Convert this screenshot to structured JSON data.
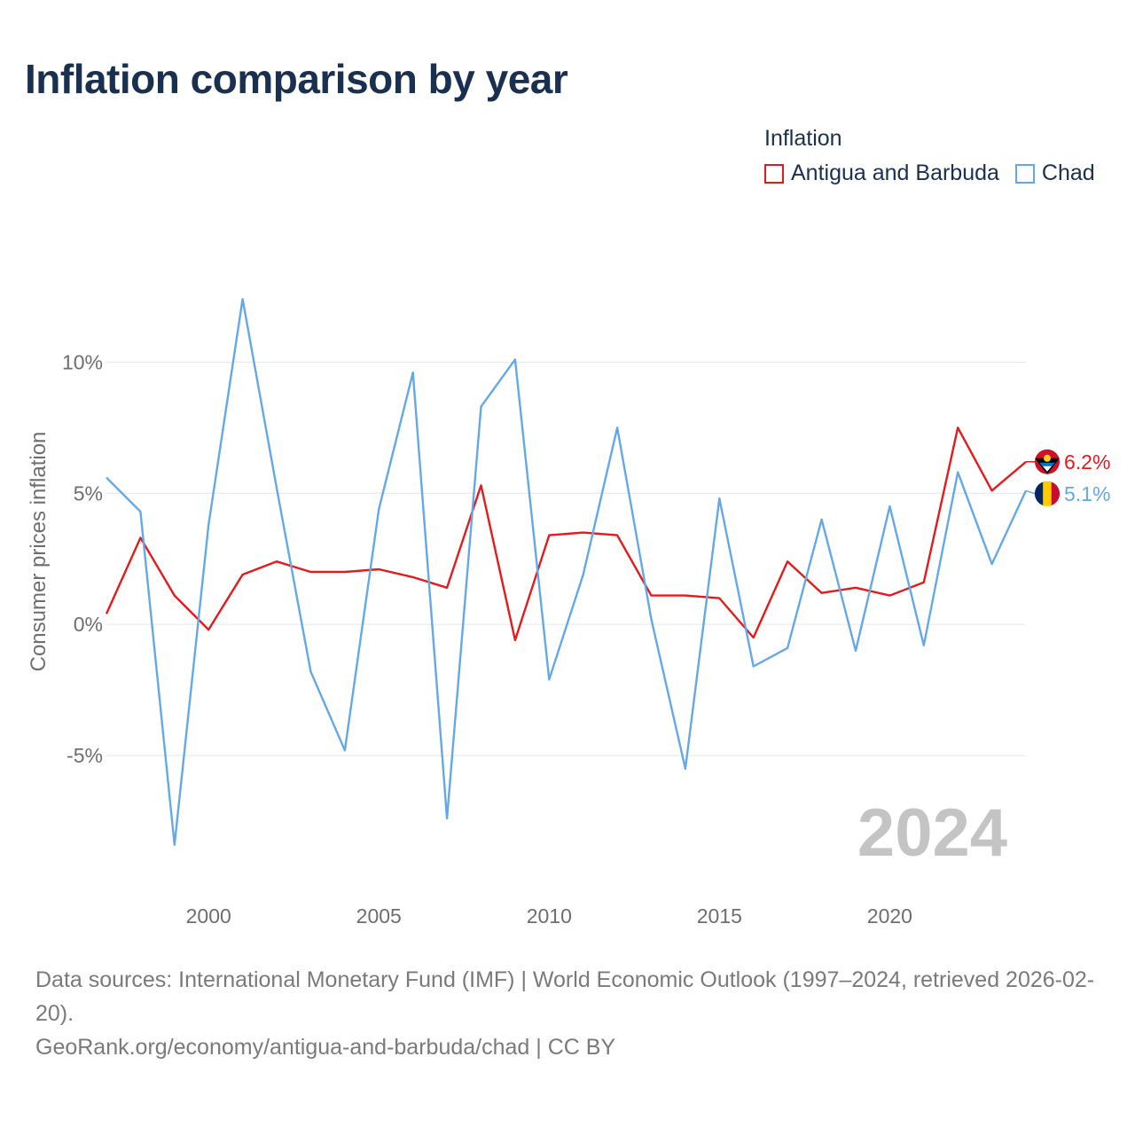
{
  "title": "Inflation comparison by year",
  "legend": {
    "title": "Inflation",
    "items": [
      {
        "name": "Antigua and Barbuda",
        "color": "#e41a1c"
      },
      {
        "name": "Chad",
        "color": "#64a8e8"
      }
    ]
  },
  "chart_data": {
    "type": "line",
    "title": "Inflation comparison by year",
    "xlabel": "",
    "ylabel": "Consumer prices inflation",
    "x": [
      1997,
      1998,
      1999,
      2000,
      2001,
      2002,
      2003,
      2004,
      2005,
      2006,
      2007,
      2008,
      2009,
      2010,
      2011,
      2012,
      2013,
      2014,
      2015,
      2016,
      2017,
      2018,
      2019,
      2020,
      2021,
      2022,
      2023,
      2024
    ],
    "xlim": [
      1997,
      2024
    ],
    "ylim": [
      -10,
      14
    ],
    "xticks": [
      2000,
      2005,
      2010,
      2015,
      2020
    ],
    "xtick_labels": [
      "2000",
      "2005",
      "2010",
      "2015",
      "2020"
    ],
    "yticks": [
      -5,
      0,
      5,
      10
    ],
    "ytick_labels": [
      "-5%",
      "0%",
      "5%",
      "10%"
    ],
    "grid": true,
    "year_watermark": "2024",
    "series": [
      {
        "name": "Antigua and Barbuda",
        "color": "#e41a1c",
        "end_label": "6.2%",
        "values": [
          0.4,
          3.3,
          1.1,
          -0.2,
          1.9,
          2.4,
          2.0,
          2.0,
          2.1,
          1.8,
          1.4,
          5.3,
          -0.6,
          3.4,
          3.5,
          3.4,
          1.1,
          1.1,
          1.0,
          -0.5,
          2.4,
          1.2,
          1.4,
          1.1,
          1.6,
          7.5,
          5.1,
          6.2
        ]
      },
      {
        "name": "Chad",
        "color": "#64a8e8",
        "end_label": "5.1%",
        "values": [
          5.6,
          4.3,
          -8.4,
          3.8,
          12.4,
          5.2,
          -1.8,
          -4.8,
          4.4,
          9.6,
          -7.4,
          8.3,
          10.1,
          -2.1,
          1.9,
          7.5,
          0.2,
          -5.5,
          4.8,
          -1.6,
          -0.9,
          4.0,
          -1.0,
          4.5,
          -0.8,
          5.8,
          2.3,
          5.1
        ]
      }
    ]
  },
  "footer": {
    "sources": "Data sources: International Monetary Fund (IMF) | World Economic Outlook (1997–2024, retrieved 2026-02-20).",
    "credit": "GeoRank.org/economy/antigua-and-barbuda/chad | CC BY"
  }
}
